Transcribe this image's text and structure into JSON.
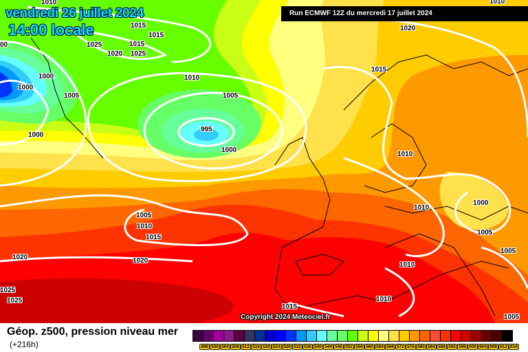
{
  "header": {
    "date": "vendredi 26 juillet 2024",
    "time": "14:00 locale",
    "run": "Run ECMWF 12Z du mercredi 17 juillet 2024"
  },
  "map": {
    "copyright": "Copyright 2024 Meteociel.fr",
    "isobar_labels": [
      "1010",
      "1015",
      "1015",
      "1025",
      "1020",
      "1015",
      "1025",
      "1000",
      "1000",
      "1005",
      "1000",
      "1010",
      "1005",
      "995",
      "1000",
      "1020",
      "1015",
      "1010",
      "1010",
      "1000",
      "1005",
      "1005",
      "1010",
      "1015",
      "1020",
      "1020",
      "1010",
      "1005",
      "1010",
      "1025",
      "1025",
      "1005",
      "1015",
      "1010",
      "00"
    ]
  },
  "footer": {
    "title": "Géop. z500, pression niveau mer",
    "lead_time": "(+216h)"
  },
  "legend": {
    "labels": [
      "496",
      "500",
      "504",
      "508",
      "512",
      "516",
      "520",
      "524",
      "528",
      "532",
      "536",
      "540",
      "544",
      "548",
      "552",
      "556",
      "560",
      "564",
      "568",
      "572",
      "576",
      "580",
      "584",
      "588",
      "592",
      "596",
      "600",
      "604",
      "608",
      "612",
      "616"
    ],
    "colors": [
      "#3c0046",
      "#660066",
      "#a000a0",
      "#8b1a8b",
      "#5c0040",
      "#333366",
      "#003399",
      "#0000cc",
      "#0000ff",
      "#0033ff",
      "#0099ff",
      "#33ccff",
      "#66ffff",
      "#66ff99",
      "#66ff66",
      "#66ff00",
      "#c8ff14",
      "#ffff00",
      "#ffff80",
      "#ffe14b",
      "#ffcc00",
      "#ff9900",
      "#ff6600",
      "#ff4d33",
      "#ff3300",
      "#ff0000",
      "#cc0000",
      "#990000",
      "#660000",
      "#4d0000",
      "#000000"
    ]
  }
}
